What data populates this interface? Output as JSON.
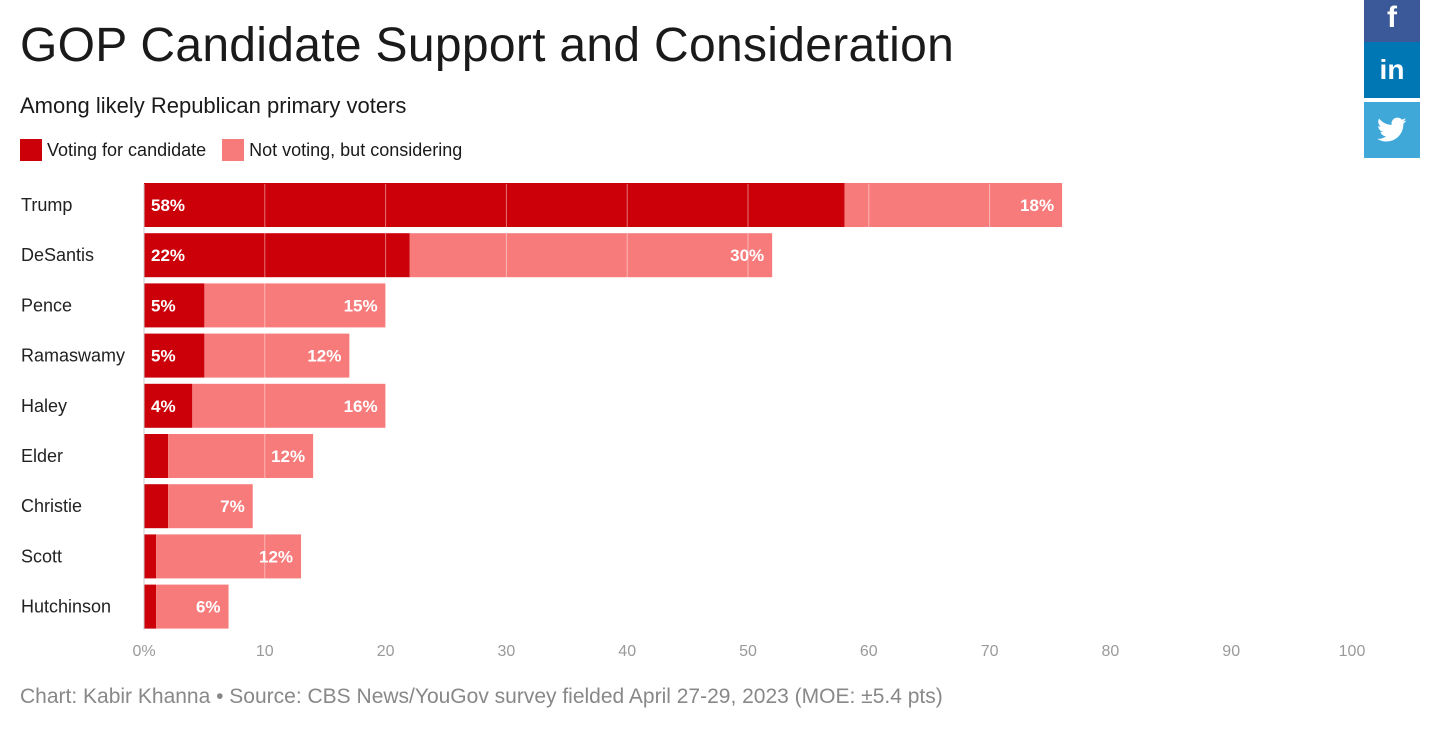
{
  "title": "GOP Candidate Support and Consideration",
  "subtitle": "Among likely Republican primary voters",
  "legend": [
    {
      "label": "Voting for candidate",
      "color": "#cc0009"
    },
    {
      "label": "Not voting, but considering",
      "color": "#f77b7b"
    }
  ],
  "share": {
    "facebook_icon": "f",
    "linkedin_icon": "in",
    "twitter_icon": "twitter-bird-icon"
  },
  "footer": "Chart: Kabir Khanna • Source: CBS News/YouGov survey fielded April 27-29, 2023 (MOE: ±5.4 pts)",
  "chart_data": {
    "type": "bar",
    "orientation": "horizontal",
    "stacked": true,
    "title": "GOP Candidate Support and Consideration",
    "subtitle": "Among likely Republican primary voters",
    "categories": [
      "Trump",
      "DeSantis",
      "Pence",
      "Ramaswamy",
      "Haley",
      "Elder",
      "Christie",
      "Scott",
      "Hutchinson"
    ],
    "series": [
      {
        "name": "Voting for candidate",
        "color": "#cc0009",
        "values": [
          58,
          22,
          5,
          5,
          4,
          2,
          2,
          1,
          1
        ],
        "labels": [
          "58%",
          "22%",
          "5%",
          "5%",
          "4%",
          "",
          "",
          "",
          ""
        ]
      },
      {
        "name": "Not voting, but considering",
        "color": "#f77b7b",
        "values": [
          18,
          30,
          15,
          12,
          16,
          12,
          7,
          12,
          6
        ],
        "labels": [
          "18%",
          "30%",
          "15%",
          "12%",
          "16%",
          "12%",
          "7%",
          "12%",
          "6%"
        ]
      }
    ],
    "xlim": [
      0,
      100
    ],
    "xticks": [
      0,
      10,
      20,
      30,
      40,
      50,
      60,
      70,
      80,
      90,
      100
    ],
    "xtick_labels": [
      "0%",
      "10",
      "20",
      "30",
      "40",
      "50",
      "60",
      "70",
      "80",
      "90",
      "100"
    ],
    "grid": true,
    "legend_position": "top-left"
  }
}
